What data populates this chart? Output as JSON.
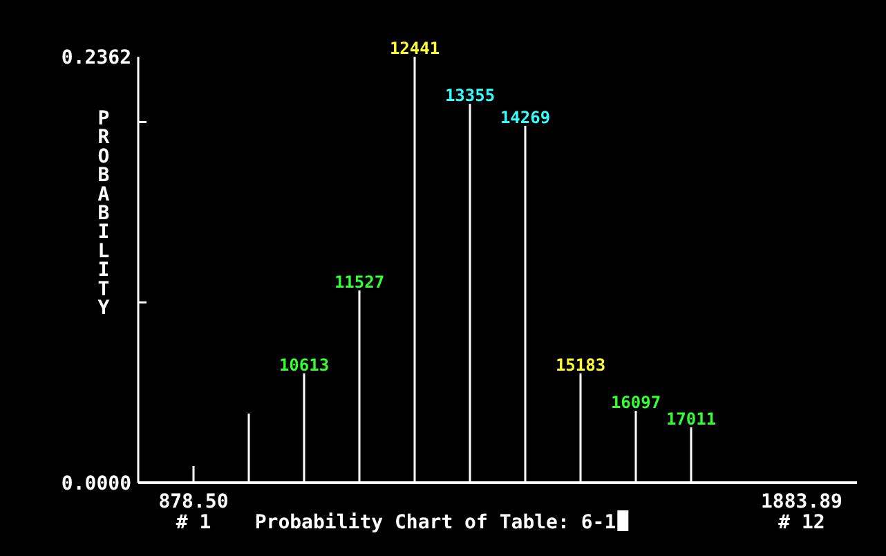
{
  "chart_data": {
    "type": "bar",
    "title": "Probability Chart of Table: 6-1",
    "ylabel": "PROBABILITY",
    "categories": [
      "878.50",
      null,
      null,
      null,
      null,
      null,
      null,
      null,
      null,
      null,
      null,
      "1883.89"
    ],
    "values": [
      0.0092,
      0.0383,
      0.0606,
      0.1066,
      0.2362,
      0.2101,
      0.1979,
      0.0606,
      0.0399,
      0.0307,
      0,
      0
    ],
    "color": "#ffffff",
    "ylim": [
      0,
      0.2362
    ],
    "yticks": [
      {
        "value": 0,
        "label": "0.0000"
      },
      {
        "value": 0.1,
        "label": null
      },
      {
        "value": 0.2,
        "label": null
      },
      {
        "value": 0.2362,
        "label": "0.2362"
      }
    ],
    "annotations": [
      "# 1",
      "# 12",
      {
        "text": "10613",
        "y": 0.0606
      },
      {
        "text": "11527",
        "y": 0.1066
      },
      {
        "text": "12441",
        "y": 0.2362
      },
      {
        "text": "13355",
        "y": 0.2101
      },
      {
        "text": "14269",
        "y": 0.1979
      },
      {
        "text": "15183",
        "y": 0.0606
      },
      {
        "text": "16097",
        "y": 0.0399
      },
      {
        "text": "17011",
        "y": 0.0307
      }
    ],
    "grid": false
  }
}
